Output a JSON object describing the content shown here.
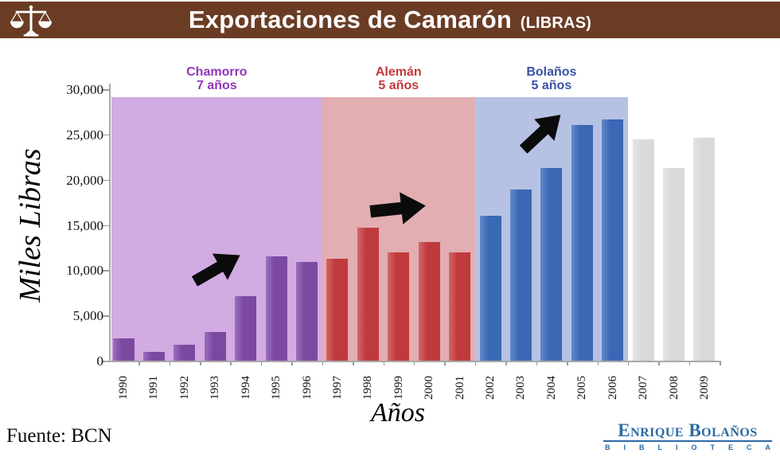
{
  "header": {
    "title": "Exportaciones de Camarón",
    "subtitle": "(LIBRAS)",
    "bg_color": "#6b3c24",
    "icon": "scales-of-justice-icon"
  },
  "chart_data": {
    "type": "bar",
    "title": "Exportaciones de Camarón (LIBRAS)",
    "xlabel": "Años",
    "ylabel": "Miles Libras",
    "ylim": [
      0,
      30000
    ],
    "ytick_step": 5000,
    "grid": false,
    "legend": "none",
    "categories": [
      "1990",
      "1991",
      "1992",
      "1993",
      "1994",
      "1995",
      "1996",
      "1997",
      "1998",
      "1999",
      "2000",
      "2001",
      "2002",
      "2003",
      "2004",
      "2005",
      "2006",
      "2007",
      "2008",
      "2009"
    ],
    "values": [
      2500,
      1000,
      1800,
      3200,
      7100,
      11500,
      10900,
      11300,
      14700,
      12000,
      13100,
      12000,
      16000,
      18900,
      21300,
      26000,
      26700,
      24500,
      21300,
      24600
    ],
    "periods": [
      {
        "name": "Chamorro",
        "duration": "7 años",
        "start": "1990",
        "end": "1996",
        "bar_color": "#7b4aa0",
        "bar_color_light": "#9a6fbd",
        "band_color": "#d2abe2",
        "label_color": "#9334b8",
        "arrow": true
      },
      {
        "name": "Alemán",
        "duration": "5 años",
        "start": "1997",
        "end": "2001",
        "bar_color": "#bf3a3c",
        "bar_color_light": "#d2666a",
        "band_color": "#e2aeb1",
        "label_color": "#c0393b",
        "arrow": true
      },
      {
        "name": "Bolaños",
        "duration": "5 años",
        "start": "2002",
        "end": "2006",
        "bar_color": "#3a68b5",
        "bar_color_light": "#6289c8",
        "band_color": "#b6c2e4",
        "label_color": "#3b52a4",
        "arrow": true
      },
      {
        "name": "",
        "duration": "",
        "start": "2007",
        "end": "2009",
        "bar_color": "#d9d9d9",
        "bar_color_light": "#e5e5e5",
        "band_color": "",
        "label_color": "",
        "arrow": false
      }
    ],
    "annotations": [
      "up-right-arrow in Chamorro band",
      "right-arrow in Alemán band",
      "up-right-arrow in Bolaños band"
    ]
  },
  "footer": {
    "source": "Fuente: BCN",
    "logo": {
      "line1": "Enrique Bolaños",
      "line2": "BIBLIOTECA",
      "color": "#2a6aa5"
    }
  }
}
